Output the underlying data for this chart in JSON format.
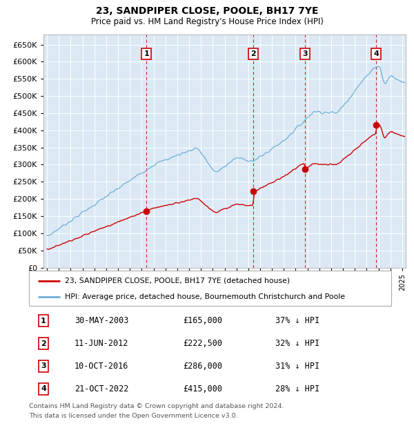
{
  "title": "23, SANDPIPER CLOSE, POOLE, BH17 7YE",
  "subtitle": "Price paid vs. HM Land Registry's House Price Index (HPI)",
  "ylim": [
    0,
    680000
  ],
  "yticks": [
    0,
    50000,
    100000,
    150000,
    200000,
    250000,
    300000,
    350000,
    400000,
    450000,
    500000,
    550000,
    600000,
    650000
  ],
  "xlim_start": 1994.7,
  "xlim_end": 2025.3,
  "bg_color": "#dce9f5",
  "hpi_color": "#6baed6",
  "price_color": "#cc0000",
  "transactions": [
    {
      "num": 1,
      "date_x": 2003.41,
      "price": 165000,
      "label": "1",
      "date_str": "30-MAY-2003",
      "pct": "37% ↓ HPI"
    },
    {
      "num": 2,
      "date_x": 2012.44,
      "price": 222500,
      "label": "2",
      "date_str": "11-JUN-2012",
      "pct": "32% ↓ HPI"
    },
    {
      "num": 3,
      "date_x": 2016.78,
      "price": 286000,
      "label": "3",
      "date_str": "10-OCT-2016",
      "pct": "31% ↓ HPI"
    },
    {
      "num": 4,
      "date_x": 2022.8,
      "price": 415000,
      "label": "4",
      "date_str": "21-OCT-2022",
      "pct": "28% ↓ HPI"
    }
  ],
  "legend_line1": "23, SANDPIPER CLOSE, POOLE, BH17 7YE (detached house)",
  "legend_line2": "HPI: Average price, detached house, Bournemouth Christchurch and Poole",
  "footer1": "Contains HM Land Registry data © Crown copyright and database right 2024.",
  "footer2": "This data is licensed under the Open Government Licence v3.0.",
  "table_rows": [
    [
      "1",
      "30-MAY-2003",
      "£165,000",
      "37% ↓ HPI"
    ],
    [
      "2",
      "11-JUN-2012",
      "£222,500",
      "32% ↓ HPI"
    ],
    [
      "3",
      "10-OCT-2016",
      "£286,000",
      "31% ↓ HPI"
    ],
    [
      "4",
      "21-OCT-2022",
      "£415,000",
      "28% ↓ HPI"
    ]
  ]
}
